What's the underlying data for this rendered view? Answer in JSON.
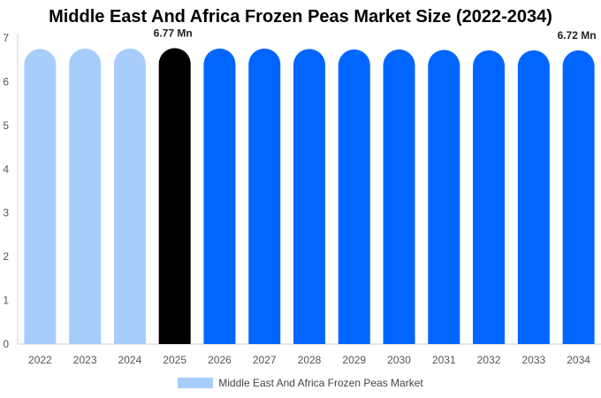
{
  "chart_data": {
    "type": "bar",
    "title": "Middle East And Africa Frozen Peas Market Size (2022-2034)",
    "categories": [
      "2022",
      "2023",
      "2024",
      "2025",
      "2026",
      "2027",
      "2028",
      "2029",
      "2030",
      "2031",
      "2032",
      "2033",
      "2034"
    ],
    "series": [
      {
        "name": "Middle East And Africa Frozen Peas Market",
        "values": [
          6.75,
          6.76,
          6.76,
          6.77,
          6.76,
          6.76,
          6.75,
          6.74,
          6.74,
          6.73,
          6.72,
          6.72,
          6.72
        ]
      }
    ],
    "data_labels": [
      {
        "category": "2025",
        "text": "6.77 Mn"
      },
      {
        "category": "2034",
        "text": "6.72 Mn"
      }
    ],
    "ylim": [
      0,
      7
    ],
    "yticks": [
      "0",
      "1",
      "2",
      "3",
      "4",
      "5",
      "6",
      "7"
    ],
    "colors": {
      "historical": "#a6cdfb",
      "base_year": "#000000",
      "forecast": "#0066ff",
      "legend": "#a6cdfb"
    },
    "historical_categories": [
      "2022",
      "2023",
      "2024"
    ],
    "base_category": "2025",
    "legend_position": "bottom",
    "grid": false
  }
}
